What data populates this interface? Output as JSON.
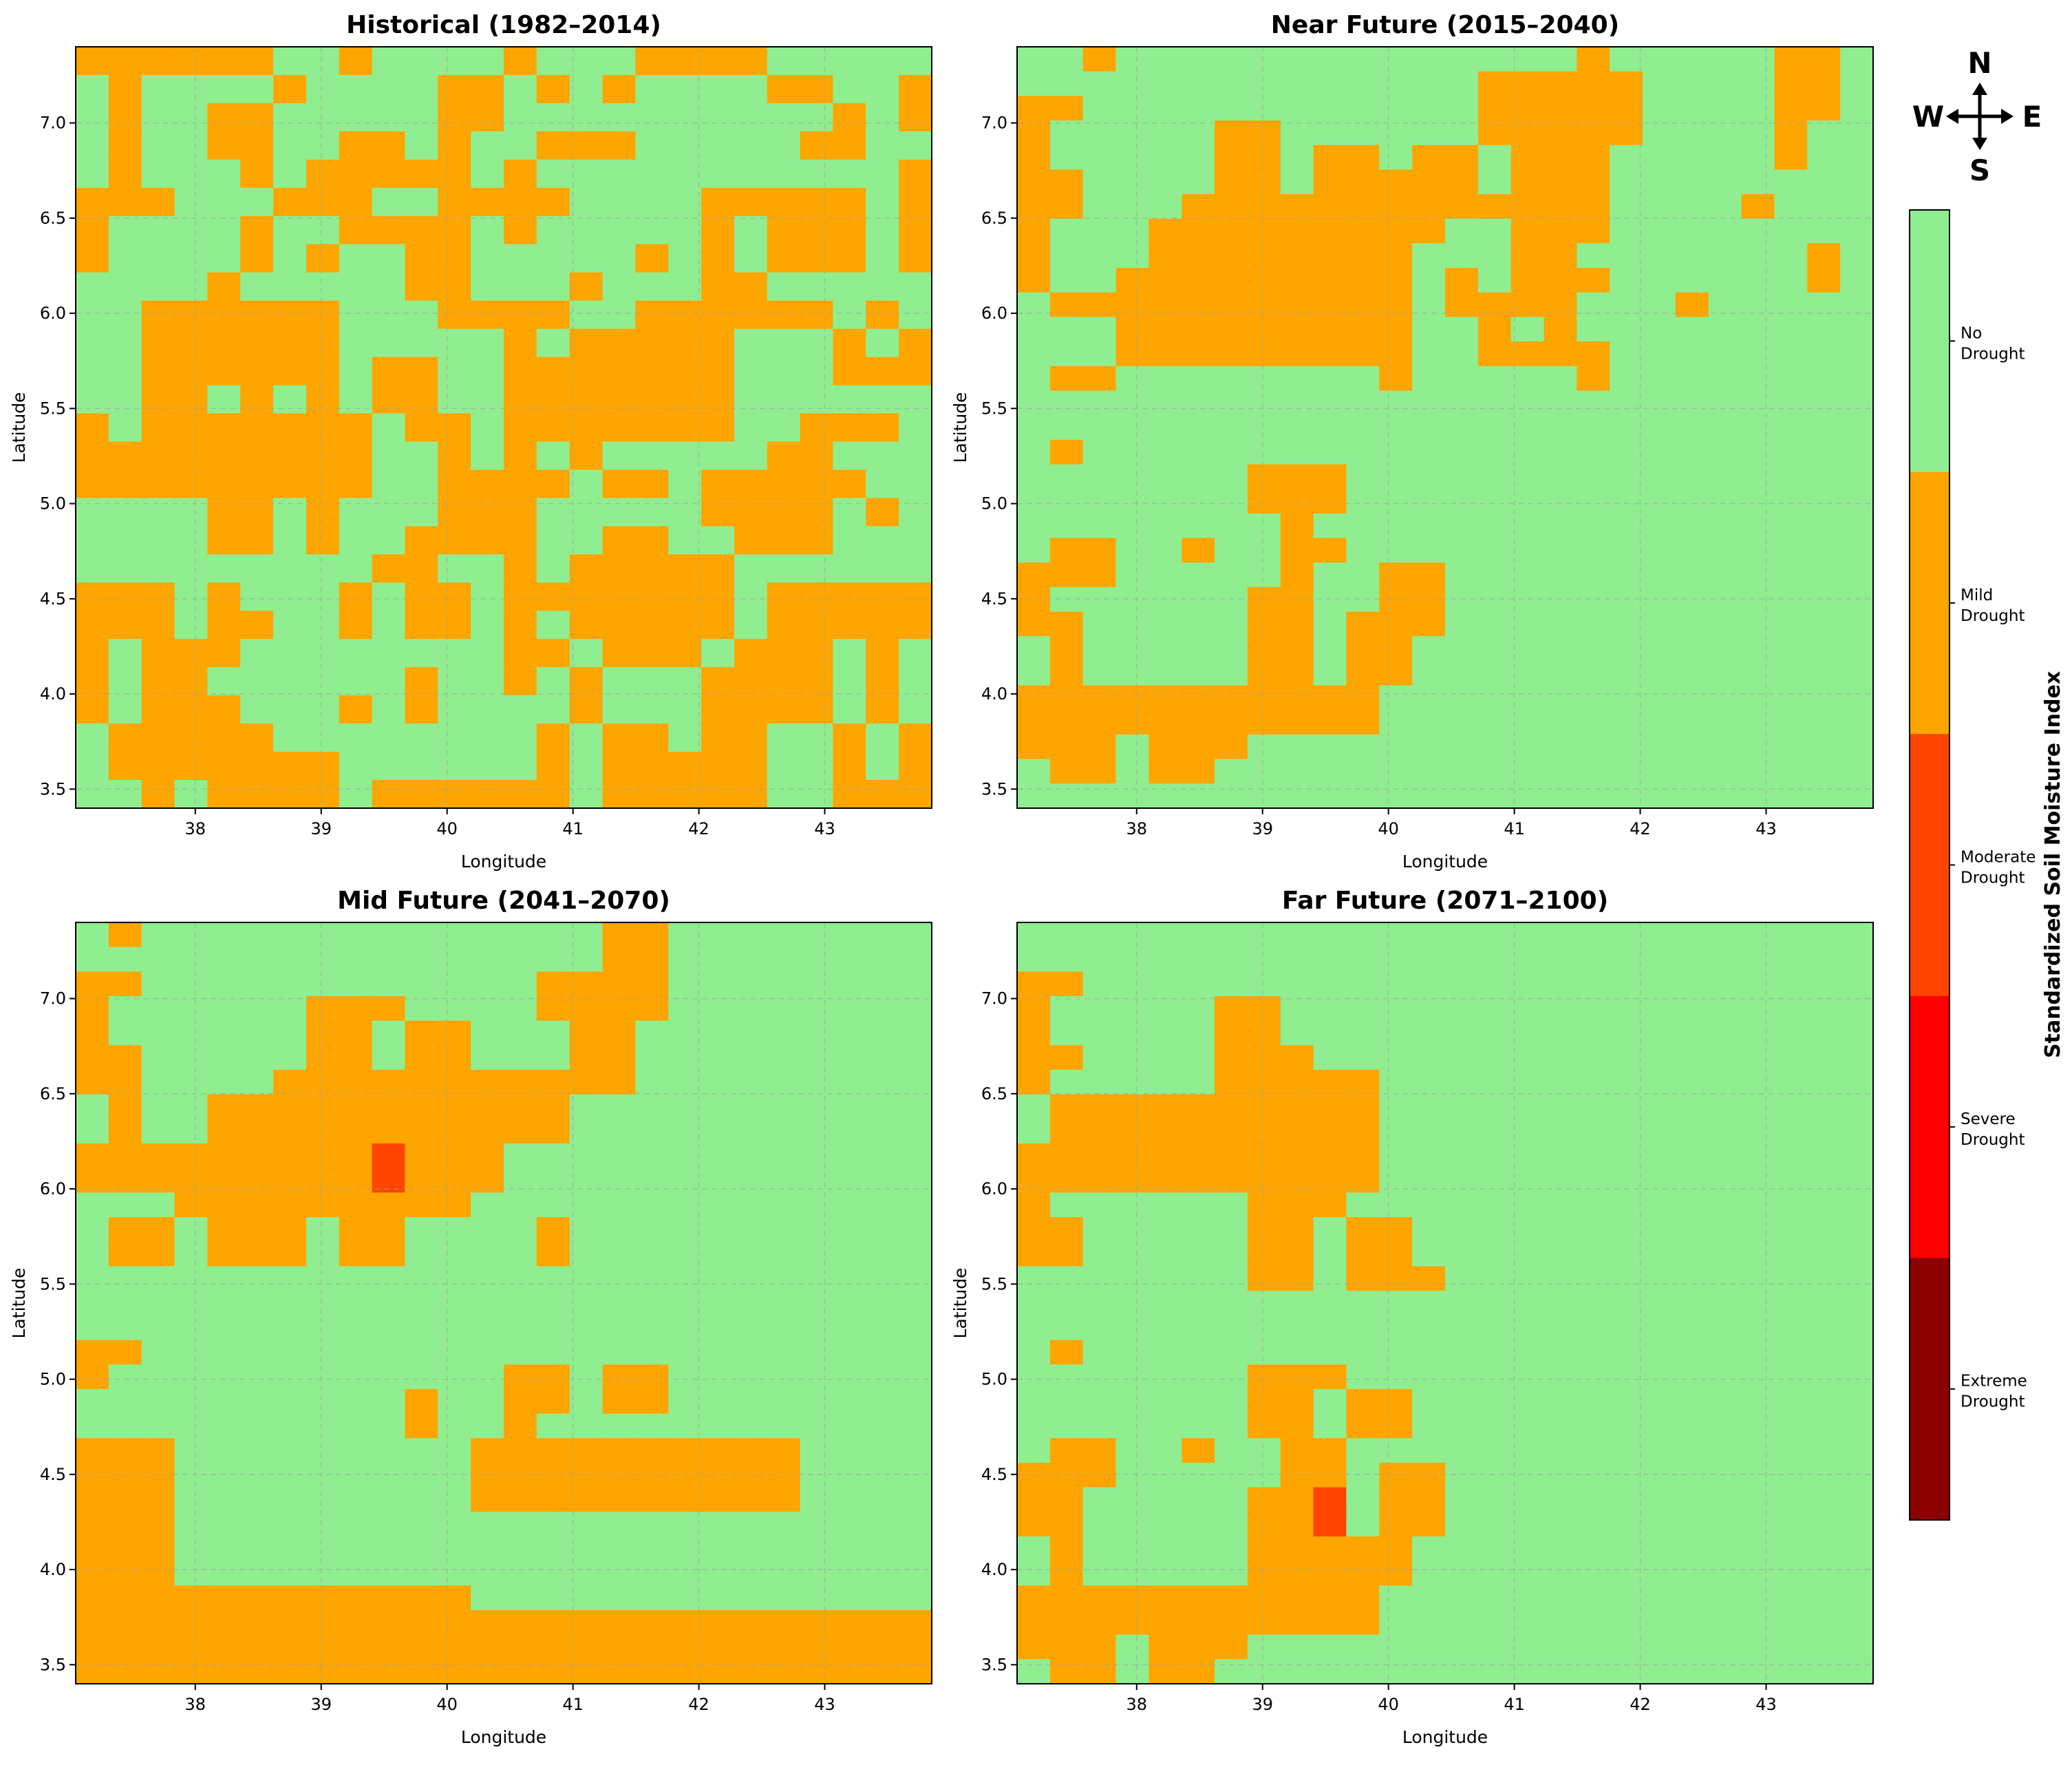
{
  "colors": {
    "no_drought": "#90ee90",
    "mild_drought": "#ffa500",
    "moderate_drought": "#ff4500",
    "severe_drought": "#ff0000",
    "extreme_drought": "#8b0000",
    "grid": "#9aa59a",
    "frame": "#000000"
  },
  "compass": {
    "n": "N",
    "s": "S",
    "e": "E",
    "w": "W",
    "icon": "compass-arrows-icon"
  },
  "colorbar": {
    "label": "Standardized Soil Moisture Index",
    "categories": [
      {
        "label": [
          "No",
          "Drought"
        ],
        "color": "#90ee90"
      },
      {
        "label": [
          "Mild",
          "Drought"
        ],
        "color": "#ffa500"
      },
      {
        "label": [
          "Moderate",
          "Drought"
        ],
        "color": "#ff4500"
      },
      {
        "label": [
          "Severe",
          "Drought"
        ],
        "color": "#ff0000"
      },
      {
        "label": [
          "Extreme",
          "Drought"
        ],
        "color": "#8b0000"
      }
    ]
  },
  "chart_data": [
    {
      "type": "heatmap",
      "title": "Historical (1982–2014)",
      "xlabel": "Longitude",
      "ylabel": "Latitude",
      "x_ticks": [
        38,
        39,
        40,
        41,
        42,
        43
      ],
      "y_ticks": [
        "3.5",
        "4.0",
        "4.5",
        "5.0",
        "5.5",
        "6.0",
        "6.5",
        "7.0"
      ],
      "xlim": [
        37.05,
        43.85
      ],
      "ylim": [
        3.4,
        7.4
      ],
      "grid": true,
      "grid_rows_north_to_south": [
        "11111100100001000111100000",
        "01000010000110101000011001",
        "01001100000110000000000101",
        "01001100110100111000001100",
        "01000101111101000000000001",
        "11100011100111100001111101",
        "10000100111101000001011101",
        "10000101001100000101011101",
        "00001000001100010001100000",
        "00111111000111100111111010",
        "00111111000001011111000101",
        "00111111011001111111000111",
        "00110101011001111111000000",
        "10111111101101111111001110",
        "11111111100101010000011000",
        "11111111100111101101111100",
        "00001101000111000001111010",
        "00001101001111001100111000",
        "00000000011001011111000000",
        "11101000101101111111011111",
        "11101100101101011111011111",
        "10111000000001101110111010",
        "10110000001001010001111010",
        "10111000101000010001111010",
        "01111100000000101101100101",
        "01111111000000101111100101",
        "00101111011111101111100111"
      ]
    },
    {
      "type": "heatmap",
      "title": "Near Future (2015–2040)",
      "xlabel": "Longitude",
      "ylabel": "Latitude",
      "x_ticks": [
        38,
        39,
        40,
        41,
        42,
        43
      ],
      "y_ticks": [
        "3.5",
        "4.0",
        "4.5",
        "5.0",
        "5.5",
        "6.0",
        "6.5",
        "7.0"
      ],
      "xlim": [
        37.05,
        43.85
      ],
      "ylim": [
        3.4,
        7.4
      ],
      "grid": true,
      "grid_rows_north_to_south": [
        "00100000000000000100000110",
        "00000000000000111110000110",
        "11000000000000111110000110",
        "10000011000000111110000100",
        "10000011011011011100000100",
        "11000011011111011100000000",
        "11000111111111111100001000",
        "10001111111110011100000000",
        "10001111111100011000000010",
        "10011111111101011100000010",
        "01111111111101111000100000",
        "00011111111100101000000000",
        "00011111111100111100000000",
        "01100000000100000100000000",
        "00000000000000000000000000",
        "00000000000000000000000000",
        "01000000000000000000000000",
        "00000001110000000000000000",
        "00000001110000000000000000",
        "00000000100000000000000000",
        "01100100110000000000000000",
        "11100000100110000000000000",
        "10000001100110000000000000",
        "11000001101110000000000000",
        "01000001101100000000000000",
        "01000001101100000000000000",
        "11111111111000000000000000",
        "11111111111000000000000000",
        "11101110000000000000000000",
        "01101100000000000000000000",
        "00000000000000000000000000"
      ]
    },
    {
      "type": "heatmap",
      "title": "Mid Future (2041–2070)",
      "xlabel": "Longitude",
      "ylabel": "Latitude",
      "x_ticks": [
        38,
        39,
        40,
        41,
        42,
        43
      ],
      "y_ticks": [
        "3.5",
        "4.0",
        "4.5",
        "5.0",
        "5.5",
        "6.0",
        "6.5",
        "7.0"
      ],
      "xlim": [
        37.05,
        43.85
      ],
      "ylim": [
        3.4,
        7.4
      ],
      "grid": true,
      "grid_rows_north_to_south": [
        "01000000000000001100000000",
        "00000000000000001100000000",
        "11000000000000111100000000",
        "10000001110000111100000000",
        "10000001101100011000000000",
        "11000001101100011000000000",
        "11000011111111111000000000",
        "01001111111111100000000000",
        "01001111111111100000000000",
        "11111111121110000000000000",
        "11111111121110000000000000",
        "00011111111100000000000000",
        "01101110110000100000000000",
        "01101110110000100000000000",
        "00000000000000000000000000",
        "00000000000000000000000000",
        "00000000000000000000000000",
        "11000000000000000000000000",
        "10000000000001101100000000",
        "00000000001001101100000000",
        "00000000001001000000000000",
        "11100000000011111111110000",
        "11100000000011111111110000",
        "11100000000011111111110000",
        "11100000000000000000000000",
        "11100000000000000000000000",
        "11100000000000000000000000",
        "11111111111100000000000000",
        "11111111111111111111111111",
        "11111111111111111111111111",
        "11111111111111111111111111"
      ]
    },
    {
      "type": "heatmap",
      "title": "Far Future (2071–2100)",
      "xlabel": "Longitude",
      "ylabel": "Latitude",
      "x_ticks": [
        38,
        39,
        40,
        41,
        42,
        43
      ],
      "y_ticks": [
        "3.5",
        "4.0",
        "4.5",
        "5.0",
        "5.5",
        "6.0",
        "6.5",
        "7.0"
      ],
      "xlim": [
        37.05,
        43.85
      ],
      "ylim": [
        3.4,
        7.4
      ],
      "grid": true,
      "grid_rows_north_to_south": [
        "00000000000000000000000000",
        "00000000000000000000000000",
        "11000000000000000000000000",
        "10000011000000000000000000",
        "10000011000000000000000000",
        "11000011100000000000000000",
        "10000011111000000000000000",
        "01111111111000000000000000",
        "01111111111000000000000000",
        "11111111111000000000000000",
        "11111111111000000000000000",
        "10000001110000000000000000",
        "11000001101100000000000000",
        "11000001101100000000000000",
        "00000001101110000000000000",
        "00000000000000000000000000",
        "00000000000000000000000000",
        "01000000000000000000000000",
        "00000001110000000000000000",
        "00000001101100000000000000",
        "00000001101100000000000000",
        "01100100110000000000000000",
        "11100000110110000000000000",
        "11000001120110000000000000",
        "11000001120110000000000000",
        "01000001111100000000000000",
        "01000001111100000000000000",
        "11111111111000000000000000",
        "11111111111000000000000000",
        "11101110000000000000000000",
        "01101100000000000000000000"
      ]
    }
  ]
}
